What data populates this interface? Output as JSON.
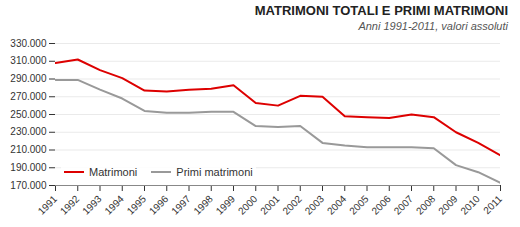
{
  "chart_data": {
    "type": "line",
    "title": "MATRIMONI TOTALI  E PRIMI MATRIMONI",
    "subtitle": "Anni 1991-2011, valori assoluti",
    "x": [
      1991,
      1992,
      1993,
      1994,
      1995,
      1996,
      1997,
      1998,
      1999,
      2000,
      2001,
      2002,
      2003,
      2004,
      2005,
      2006,
      2007,
      2008,
      2009,
      2010,
      2011
    ],
    "series": [
      {
        "name": "Matrimoni",
        "color": "#dd0000",
        "values": [
          308000,
          312000,
          300000,
          291000,
          277000,
          276000,
          278000,
          279000,
          283000,
          263000,
          260000,
          271000,
          270000,
          248000,
          247000,
          246000,
          250000,
          247000,
          230000,
          218000,
          204000
        ]
      },
      {
        "name": "Primi matrimoni",
        "color": "#999999",
        "values": [
          289000,
          289000,
          278000,
          268000,
          254000,
          252000,
          252000,
          253000,
          253000,
          237000,
          236000,
          237000,
          218000,
          215000,
          213000,
          213000,
          213000,
          212000,
          193000,
          185000,
          173000
        ]
      }
    ],
    "xlim": [
      1991,
      2011
    ],
    "xticks": [
      1991,
      1992,
      1993,
      1994,
      1995,
      1996,
      1997,
      1998,
      1999,
      2000,
      2001,
      2002,
      2003,
      2004,
      2005,
      2006,
      2007,
      2008,
      2009,
      2010,
      2011
    ],
    "ylim": [
      170000,
      330000
    ],
    "yticks": [
      {
        "value": 170000,
        "label": "170.000"
      },
      {
        "value": 190000,
        "label": "190.000"
      },
      {
        "value": 210000,
        "label": "210.000"
      },
      {
        "value": 230000,
        "label": "230.000"
      },
      {
        "value": 250000,
        "label": "250.000"
      },
      {
        "value": 270000,
        "label": "270.000"
      },
      {
        "value": 290000,
        "label": "290.000"
      },
      {
        "value": 310000,
        "label": "310.000"
      },
      {
        "value": 330000,
        "label": "330.000"
      }
    ],
    "grid": true,
    "legend": "lower left"
  }
}
